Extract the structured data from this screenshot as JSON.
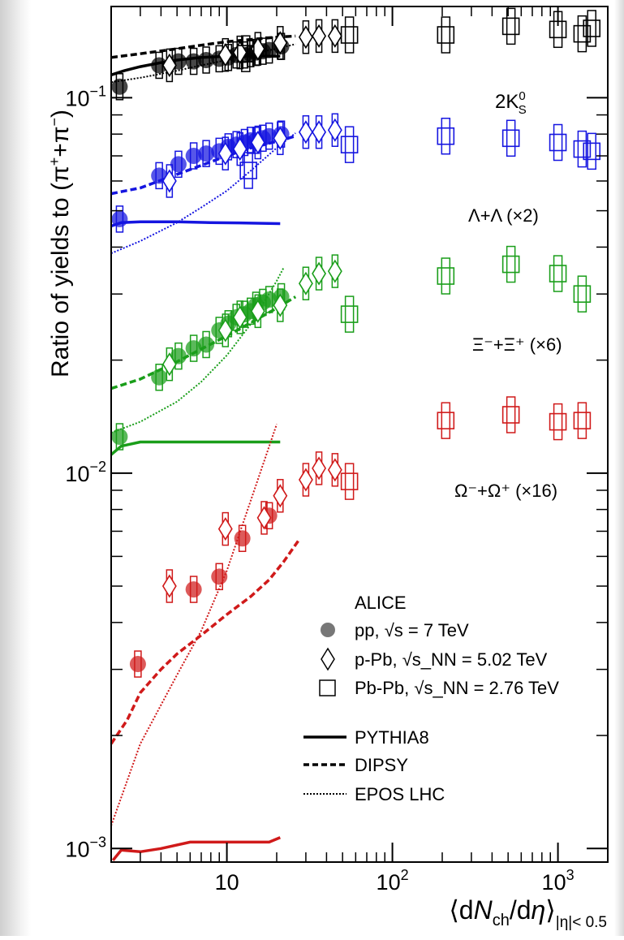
{
  "chart_data": {
    "type": "scatter",
    "xscale": "log",
    "yscale": "log",
    "xlim": [
      2,
      2000
    ],
    "ylim": [
      0.00092,
      0.175
    ],
    "xticks": [
      {
        "value": 10,
        "text": "10"
      },
      {
        "value": 100,
        "base": "10",
        "exp": "2"
      },
      {
        "value": 1000,
        "base": "10",
        "exp": "3"
      }
    ],
    "yticks": [
      {
        "value": 0.001,
        "base": "10",
        "exp": "−3"
      },
      {
        "value": 0.01,
        "base": "10",
        "exp": "−2"
      },
      {
        "value": 0.1,
        "base": "10",
        "exp": "−1"
      }
    ],
    "ylabel": {
      "main": "Ratio of yields to (π",
      "sup1": "+",
      "mid": "+π",
      "sup2": "−",
      "end": ")"
    },
    "xlabel": {
      "open": "⟨d",
      "N": "N",
      "ch": "ch",
      "slash": "/d",
      "eta": "η",
      "close": "⟩",
      "sub": "|η|< 0.5"
    },
    "species": [
      {
        "label": "2K",
        "sup": "0",
        "sub": "S",
        "color": "#000000"
      },
      {
        "label": "Λ+Λ (×2)",
        "color": "#1515e0"
      },
      {
        "label": "Ξ⁻+Ξ⁺ (×6)",
        "color": "#1a9e1a"
      },
      {
        "label": "Ω⁻+Ω⁺ (×16)",
        "color": "#d01a1a"
      }
    ],
    "legend": {
      "title": "ALICE",
      "entries": [
        {
          "marker": "circle",
          "text": "pp, √s = 7 TeV"
        },
        {
          "marker": "diamond",
          "text": "p-Pb, √s_NN = 5.02 TeV"
        },
        {
          "marker": "square",
          "text": "Pb-Pb, √s_NN = 2.76 TeV"
        }
      ],
      "models": [
        {
          "style": "solid",
          "text": "PYTHIA8"
        },
        {
          "style": "dashed",
          "text": "DIPSY"
        },
        {
          "style": "dotted",
          "text": "EPOS LHC"
        }
      ]
    },
    "series": [
      {
        "name": "2K0S pp",
        "species": 0,
        "marker": "circle",
        "x": [
          2.25,
          3.9,
          5.1,
          6.3,
          7.5,
          9.0,
          10.2,
          11.4,
          12.8,
          13.9,
          15.0,
          16.5,
          18.0,
          21.3
        ],
        "y": [
          0.107,
          0.122,
          0.125,
          0.125,
          0.126,
          0.127,
          0.128,
          0.13,
          0.13,
          0.131,
          0.132,
          0.133,
          0.134,
          0.137
        ]
      },
      {
        "name": "2K0S pPb",
        "species": 0,
        "marker": "diamond",
        "x": [
          4.5,
          9.8,
          12.0,
          15.4,
          21.0,
          30.0,
          36.0,
          45.0
        ],
        "y": [
          0.122,
          0.13,
          0.132,
          0.135,
          0.14,
          0.145,
          0.146,
          0.146
        ]
      },
      {
        "name": "2K0S PbPb",
        "species": 0,
        "marker": "square",
        "x": [
          13.0,
          55.0,
          210,
          520,
          1000,
          1400,
          1600
        ],
        "y": [
          0.131,
          0.147,
          0.147,
          0.155,
          0.152,
          0.148,
          0.153
        ]
      },
      {
        "name": "Lambda pp",
        "species": 1,
        "marker": "circle",
        "x": [
          2.25,
          3.9,
          5.1,
          6.3,
          7.5,
          9.0,
          10.2,
          11.4,
          12.8,
          13.9,
          15.0,
          16.5,
          18.0,
          21.3
        ],
        "y": [
          0.0475,
          0.062,
          0.0665,
          0.07,
          0.071,
          0.072,
          0.074,
          0.075,
          0.076,
          0.077,
          0.077,
          0.078,
          0.079,
          0.08
        ]
      },
      {
        "name": "Lambda pPb",
        "species": 1,
        "marker": "diamond",
        "x": [
          4.5,
          9.8,
          12.0,
          15.4,
          21.0,
          30.0,
          36.0,
          45.0
        ],
        "y": [
          0.06,
          0.071,
          0.073,
          0.076,
          0.078,
          0.081,
          0.081,
          0.082
        ]
      },
      {
        "name": "Lambda PbPb",
        "species": 1,
        "marker": "square",
        "x": [
          13.5,
          55.0,
          210,
          520,
          1000,
          1400,
          1600
        ],
        "y": [
          0.064,
          0.075,
          0.079,
          0.078,
          0.076,
          0.073,
          0.072
        ]
      },
      {
        "name": "Xi pp",
        "species": 2,
        "marker": "circle",
        "x": [
          2.25,
          3.9,
          5.1,
          6.3,
          7.5,
          9.0,
          10.2,
          11.4,
          12.8,
          13.9,
          15.0,
          16.5,
          18.0,
          21.3
        ],
        "y": [
          0.0125,
          0.018,
          0.0205,
          0.0215,
          0.022,
          0.024,
          0.025,
          0.026,
          0.0265,
          0.027,
          0.028,
          0.0285,
          0.029,
          0.0295
        ]
      },
      {
        "name": "Xi pPb",
        "species": 2,
        "marker": "diamond",
        "x": [
          4.5,
          9.8,
          12.0,
          15.4,
          21.0,
          30.0,
          36.0,
          45.0
        ],
        "y": [
          0.0195,
          0.024,
          0.026,
          0.027,
          0.028,
          0.032,
          0.034,
          0.0345
        ]
      },
      {
        "name": "Xi PbPb",
        "species": 2,
        "marker": "square",
        "x": [
          55.0,
          210,
          520,
          1000,
          1400
        ],
        "y": [
          0.0265,
          0.0335,
          0.036,
          0.034,
          0.03
        ]
      },
      {
        "name": "Omega pp",
        "species": 3,
        "marker": "circle",
        "x": [
          2.9,
          6.3,
          9.0,
          12.4,
          18.0
        ],
        "y": [
          0.0031,
          0.0049,
          0.0053,
          0.0067,
          0.0077
        ]
      },
      {
        "name": "Omega pPb",
        "species": 3,
        "marker": "diamond",
        "x": [
          4.5,
          9.8,
          16.8,
          21.0,
          30.0,
          36.0,
          45.0
        ],
        "y": [
          0.005,
          0.0071,
          0.0076,
          0.0087,
          0.0096,
          0.0103,
          0.0102
        ]
      },
      {
        "name": "Omega PbPb",
        "species": 3,
        "marker": "square",
        "x": [
          55.0,
          210,
          520,
          1000,
          1400
        ],
        "y": [
          0.0095,
          0.0138,
          0.0143,
          0.0137,
          0.0138
        ]
      }
    ],
    "models": [
      {
        "species": 0,
        "style": "solid",
        "x": [
          2.0,
          2.4,
          3,
          4,
          5,
          7,
          10,
          14,
          21
        ],
        "y": [
          0.115,
          0.118,
          0.121,
          0.124,
          0.126,
          0.128,
          0.129,
          0.129,
          0.129
        ]
      },
      {
        "species": 0,
        "style": "dashed",
        "x": [
          2.0,
          3,
          5,
          7,
          10,
          14,
          20,
          26
        ],
        "y": [
          0.128,
          0.131,
          0.135,
          0.138,
          0.141,
          0.143,
          0.145,
          0.146
        ]
      },
      {
        "species": 0,
        "style": "dotted",
        "x": [
          2.0,
          3,
          5,
          7,
          10,
          14,
          20,
          26
        ],
        "y": [
          0.11,
          0.113,
          0.118,
          0.122,
          0.126,
          0.131,
          0.135,
          0.139
        ]
      },
      {
        "species": 1,
        "style": "solid",
        "x": [
          2.0,
          2.3,
          3,
          5,
          8,
          12,
          21
        ],
        "y": [
          0.0455,
          0.0465,
          0.0467,
          0.0467,
          0.0465,
          0.0464,
          0.0462
        ]
      },
      {
        "species": 1,
        "style": "dashed",
        "x": [
          2.0,
          3,
          5,
          7,
          10,
          14,
          20,
          26
        ],
        "y": [
          0.0555,
          0.0575,
          0.0625,
          0.066,
          0.07,
          0.0735,
          0.0765,
          0.079
        ]
      },
      {
        "species": 1,
        "style": "dotted",
        "x": [
          2.0,
          3,
          5,
          7,
          10,
          14,
          20,
          26
        ],
        "y": [
          0.0385,
          0.0415,
          0.0465,
          0.051,
          0.0565,
          0.064,
          0.0735,
          0.0805
        ]
      },
      {
        "species": 2,
        "style": "solid",
        "x": [
          2.0,
          2.3,
          3,
          5,
          8,
          12,
          21
        ],
        "y": [
          0.0112,
          0.0118,
          0.0121,
          0.0121,
          0.0121,
          0.0121,
          0.0121
        ]
      },
      {
        "species": 2,
        "style": "dashed",
        "x": [
          2.0,
          3,
          5,
          7,
          10,
          14,
          20,
          26
        ],
        "y": [
          0.0168,
          0.0178,
          0.0198,
          0.0214,
          0.0232,
          0.0252,
          0.0275,
          0.0295
        ]
      },
      {
        "species": 2,
        "style": "dotted",
        "x": [
          2.0,
          3,
          5,
          7,
          10,
          14,
          20,
          22
        ],
        "y": [
          0.0128,
          0.0137,
          0.0155,
          0.0175,
          0.0206,
          0.025,
          0.0325,
          0.0352
        ]
      },
      {
        "species": 3,
        "style": "solid",
        "x": [
          2.05,
          2.3,
          3,
          4,
          6,
          8,
          12,
          18,
          21
        ],
        "y": [
          0.00093,
          0.00099,
          0.00098,
          0.001,
          0.00104,
          0.00104,
          0.00104,
          0.00104,
          0.00107
        ]
      },
      {
        "species": 3,
        "style": "dashed",
        "x": [
          2.0,
          2.5,
          3,
          4,
          5,
          7,
          10,
          14,
          18,
          22,
          27
        ],
        "y": [
          0.0019,
          0.0022,
          0.0026,
          0.003,
          0.0033,
          0.0037,
          0.0042,
          0.0047,
          0.0052,
          0.0058,
          0.0066
        ]
      },
      {
        "species": 3,
        "style": "dotted",
        "x": [
          2.0,
          3,
          5,
          7,
          10,
          14,
          20
        ],
        "y": [
          0.00115,
          0.0019,
          0.0029,
          0.0038,
          0.0055,
          0.0085,
          0.0135
        ]
      }
    ]
  }
}
